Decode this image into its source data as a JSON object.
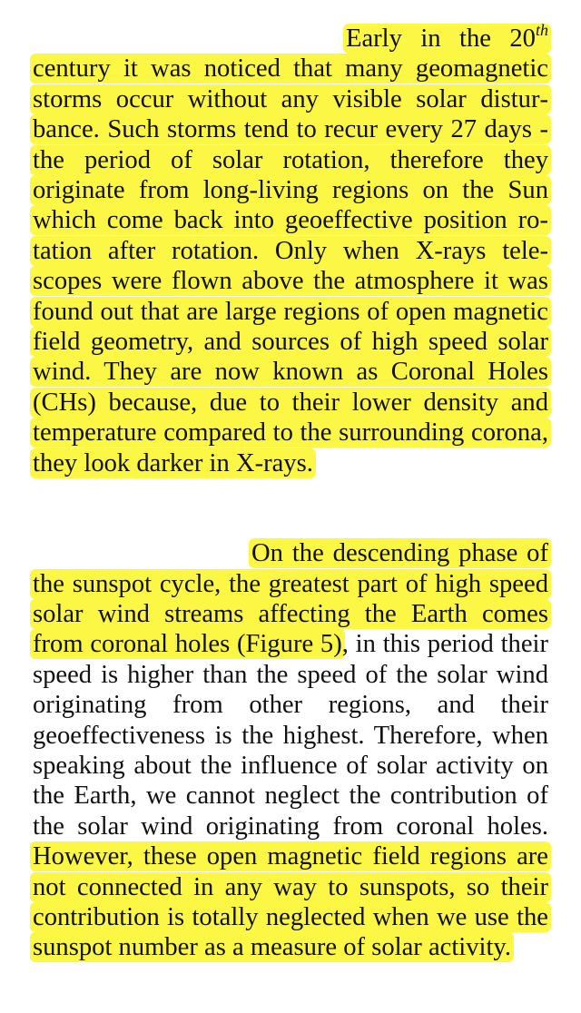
{
  "paragraph1": {
    "before_sup": "Early in the 20",
    "sup": "th",
    "after_sup": " century it was noticed that many geomagnetic storms occur without any visible solar distur­bance. Such storms tend to recur every 27 days - the period of solar rotation, therefore they originate from long-living regions on the Sun which come back into geoeffective position ro­tation after rotation. Only when X-rays tele­scopes were flown above the atmosphere it was found out that are large regions of open mag­netic field geometry, and sources of high speed solar wind. They are now known as Coronal Holes (CHs) because, due to their lower den­sity and temperature compared to the surround­ing corona, they look darker in X-rays."
  },
  "paragraph2": {
    "highlight_a": "On the descending phase of the sunspot cycle, the greatest part of high speed solar wind streams affecting the Earth comes from coronal holes (Figure 5)",
    "plain": ", in this period their speed is higher than the speed of the solar wind originating from other re­gions, and their geoeffectiveness is the highest. Therefore, when speaking about the influence of solar activity on the Earth, we cannot neglect the contribution of the solar wind originating from coronal holes. ",
    "highlight_b": "However, these open mag­netic field regions are not connected in any way to sunspots, so their contribution is totally ne­glected when we use the sunspot number as a measure of solar activity."
  },
  "colors": {
    "highlight": "#fcf745",
    "text": "#111111",
    "background": "#ffffff"
  }
}
